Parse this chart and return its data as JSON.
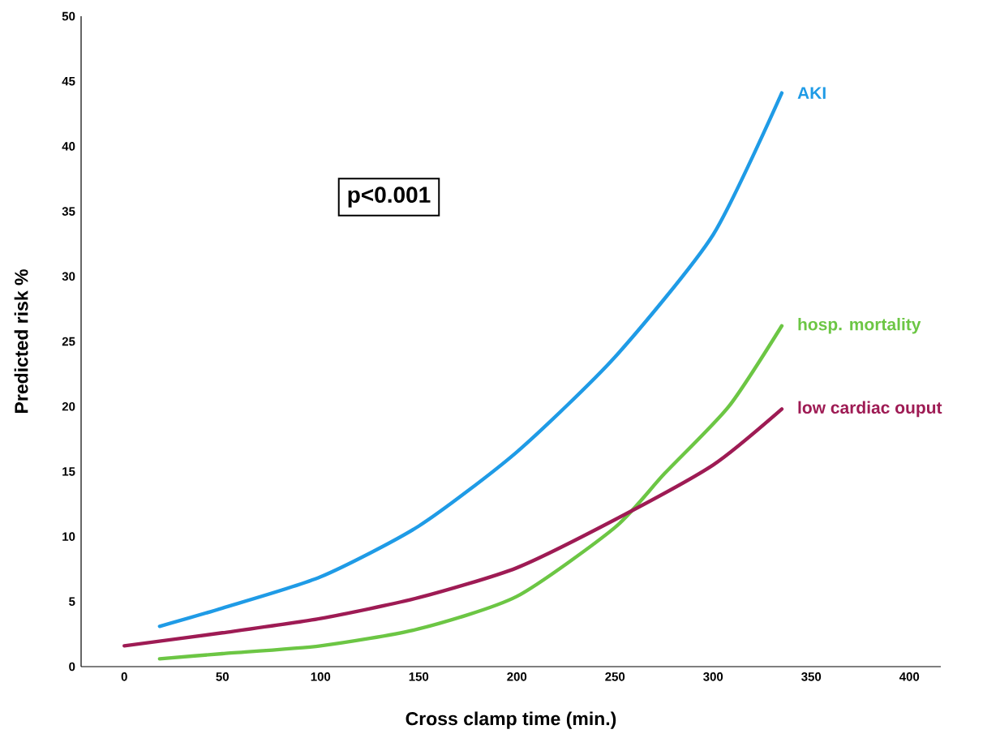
{
  "chart_data": {
    "type": "line",
    "xlabel": "Cross clamp time (min.)",
    "ylabel": "Predicted risk %",
    "annotations": [
      "p<0.001"
    ],
    "xlim": [
      -22,
      416
    ],
    "ylim": [
      0,
      50
    ],
    "xticks": [
      0,
      50,
      100,
      150,
      200,
      250,
      300,
      350,
      400
    ],
    "yticks": [
      0,
      5,
      10,
      15,
      20,
      25,
      30,
      35,
      40,
      45,
      50
    ],
    "grid": false,
    "legend": false,
    "marker": "none",
    "line_style": "solid",
    "series": [
      {
        "name": "AKI",
        "color": "#1f9be6",
        "x": [
          18,
          50,
          100,
          150,
          200,
          250,
          300,
          335
        ],
        "values": [
          3.1,
          4.5,
          6.9,
          10.8,
          16.5,
          23.8,
          33.2,
          44.1
        ]
      },
      {
        "name": "hosp. mortality",
        "color": "#6cc644",
        "x": [
          18,
          50,
          100,
          150,
          200,
          250,
          275,
          308,
          335
        ],
        "values": [
          0.6,
          1.0,
          1.6,
          2.9,
          5.4,
          10.7,
          14.8,
          20.0,
          26.2
        ]
      },
      {
        "name": "low cardiac ouput",
        "color": "#9e1b54",
        "x": [
          0,
          50,
          100,
          150,
          200,
          250,
          300,
          335
        ],
        "values": [
          1.6,
          2.6,
          3.7,
          5.3,
          7.6,
          11.3,
          15.5,
          19.8
        ]
      }
    ]
  }
}
